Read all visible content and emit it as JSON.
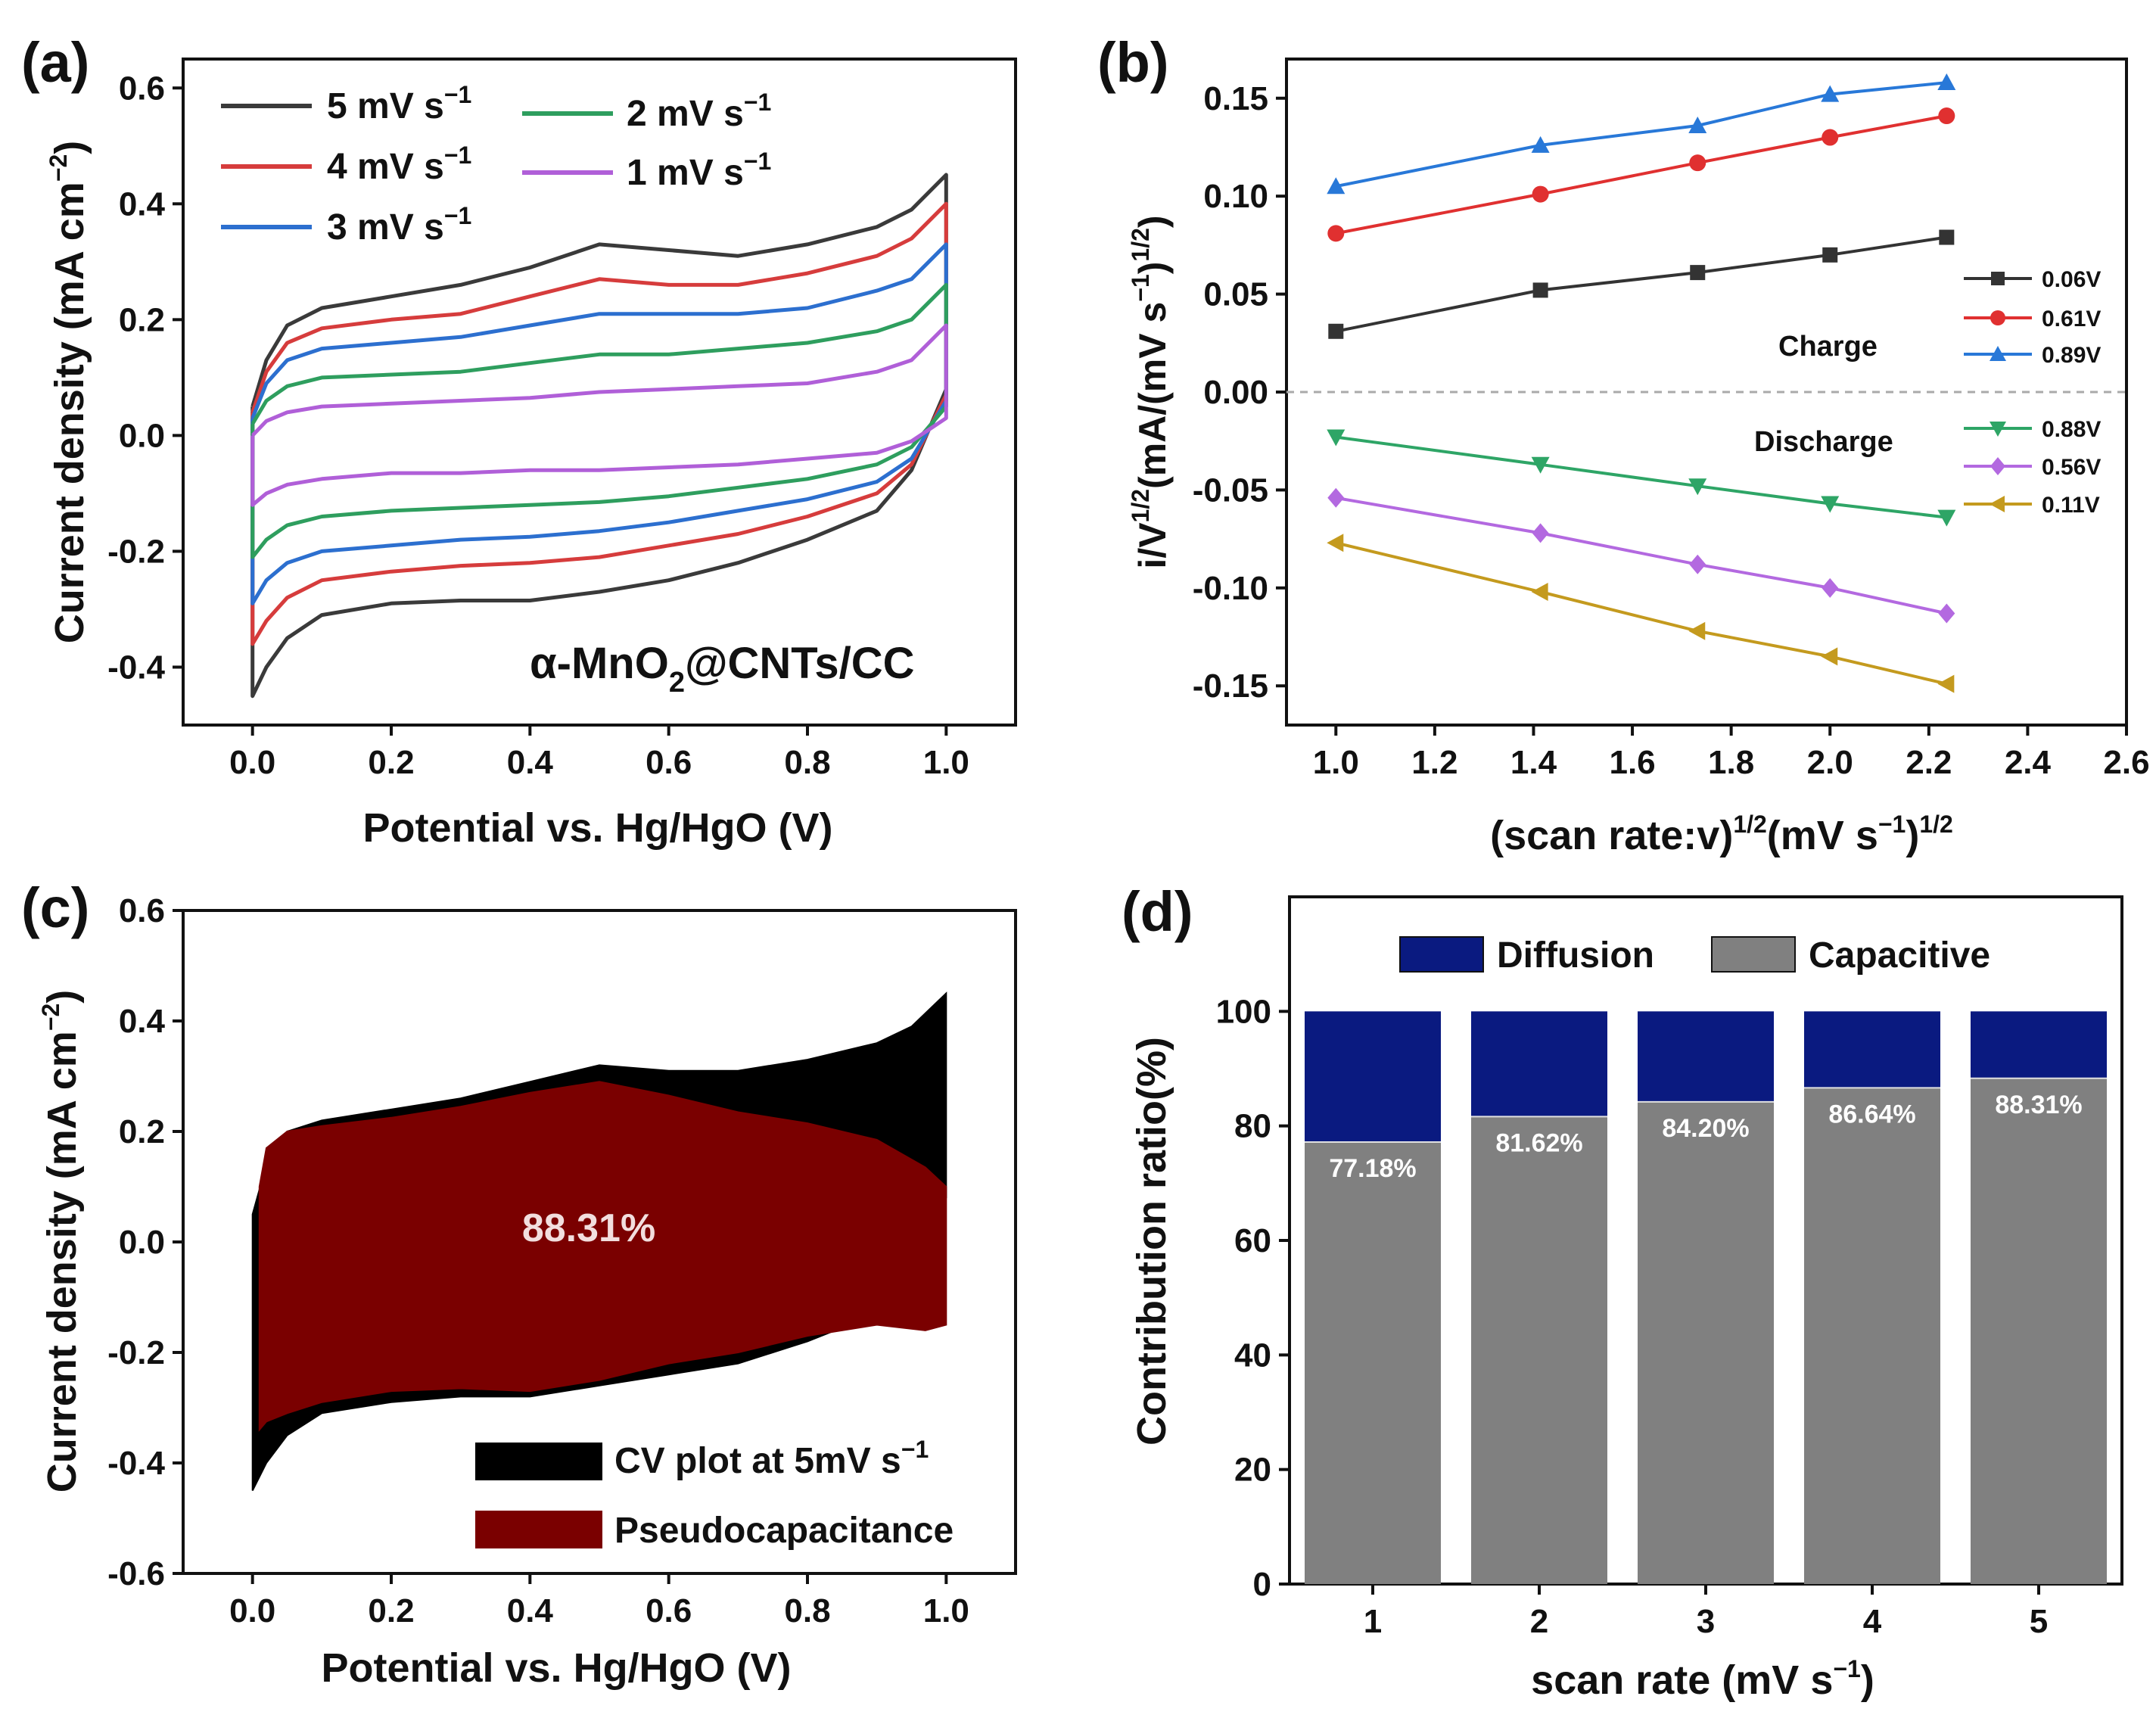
{
  "chart_data": [
    {
      "panel": "(a)",
      "type": "line",
      "xlabel": "Potential vs. Hg/HgO (V)",
      "ylabel": "Current density (mA cm",
      "ylabel_sup": "−2",
      "ylabel_close": ")",
      "xlim": [
        -0.1,
        1.1
      ],
      "ylim": [
        -0.5,
        0.65
      ],
      "xticks": [
        "0.0",
        "0.2",
        "0.4",
        "0.6",
        "0.8",
        "1.0"
      ],
      "yticks": [
        "-0.4",
        "-0.2",
        "0.0",
        "0.2",
        "0.4",
        "0.6"
      ],
      "annotation": {
        "main": "α-MnO",
        "sub": "2",
        "tail": "@CNTs/CC"
      },
      "series": [
        {
          "name": "5 mV s",
          "sup": "−1",
          "color": "#3a3a3a",
          "upper": [
            [
              0,
              0.05
            ],
            [
              0.02,
              0.13
            ],
            [
              0.05,
              0.19
            ],
            [
              0.1,
              0.22
            ],
            [
              0.2,
              0.24
            ],
            [
              0.3,
              0.26
            ],
            [
              0.4,
              0.29
            ],
            [
              0.5,
              0.33
            ],
            [
              0.6,
              0.32
            ],
            [
              0.7,
              0.31
            ],
            [
              0.8,
              0.33
            ],
            [
              0.9,
              0.36
            ],
            [
              0.95,
              0.39
            ],
            [
              1.0,
              0.45
            ]
          ],
          "lower": [
            [
              1.0,
              0.08
            ],
            [
              0.95,
              -0.06
            ],
            [
              0.9,
              -0.13
            ],
            [
              0.8,
              -0.18
            ],
            [
              0.7,
              -0.22
            ],
            [
              0.6,
              -0.25
            ],
            [
              0.5,
              -0.27
            ],
            [
              0.4,
              -0.285
            ],
            [
              0.3,
              -0.285
            ],
            [
              0.2,
              -0.29
            ],
            [
              0.1,
              -0.31
            ],
            [
              0.05,
              -0.35
            ],
            [
              0.02,
              -0.4
            ],
            [
              0,
              -0.45
            ]
          ]
        },
        {
          "name": "4 mV s",
          "sup": "−1",
          "color": "#d63c3c",
          "upper": [
            [
              0,
              0.04
            ],
            [
              0.02,
              0.11
            ],
            [
              0.05,
              0.16
            ],
            [
              0.1,
              0.185
            ],
            [
              0.2,
              0.2
            ],
            [
              0.3,
              0.21
            ],
            [
              0.4,
              0.24
            ],
            [
              0.5,
              0.27
            ],
            [
              0.6,
              0.26
            ],
            [
              0.7,
              0.26
            ],
            [
              0.8,
              0.28
            ],
            [
              0.9,
              0.31
            ],
            [
              0.95,
              0.34
            ],
            [
              1.0,
              0.4
            ]
          ],
          "lower": [
            [
              1.0,
              0.07
            ],
            [
              0.95,
              -0.05
            ],
            [
              0.9,
              -0.1
            ],
            [
              0.8,
              -0.14
            ],
            [
              0.7,
              -0.17
            ],
            [
              0.6,
              -0.19
            ],
            [
              0.5,
              -0.21
            ],
            [
              0.4,
              -0.22
            ],
            [
              0.3,
              -0.225
            ],
            [
              0.2,
              -0.235
            ],
            [
              0.1,
              -0.25
            ],
            [
              0.05,
              -0.28
            ],
            [
              0.02,
              -0.32
            ],
            [
              0,
              -0.36
            ]
          ]
        },
        {
          "name": "3 mV s",
          "sup": "−1",
          "color": "#2c6fcf",
          "upper": [
            [
              0,
              0.03
            ],
            [
              0.02,
              0.09
            ],
            [
              0.05,
              0.13
            ],
            [
              0.1,
              0.15
            ],
            [
              0.2,
              0.16
            ],
            [
              0.3,
              0.17
            ],
            [
              0.4,
              0.19
            ],
            [
              0.5,
              0.21
            ],
            [
              0.6,
              0.21
            ],
            [
              0.7,
              0.21
            ],
            [
              0.8,
              0.22
            ],
            [
              0.9,
              0.25
            ],
            [
              0.95,
              0.27
            ],
            [
              1.0,
              0.33
            ]
          ],
          "lower": [
            [
              1.0,
              0.06
            ],
            [
              0.95,
              -0.04
            ],
            [
              0.9,
              -0.08
            ],
            [
              0.8,
              -0.11
            ],
            [
              0.7,
              -0.13
            ],
            [
              0.6,
              -0.15
            ],
            [
              0.5,
              -0.165
            ],
            [
              0.4,
              -0.175
            ],
            [
              0.3,
              -0.18
            ],
            [
              0.2,
              -0.19
            ],
            [
              0.1,
              -0.2
            ],
            [
              0.05,
              -0.22
            ],
            [
              0.02,
              -0.25
            ],
            [
              0,
              -0.29
            ]
          ]
        },
        {
          "name": "2 mV s",
          "sup": "−1",
          "color": "#2e9e5e",
          "upper": [
            [
              0,
              0.02
            ],
            [
              0.02,
              0.06
            ],
            [
              0.05,
              0.085
            ],
            [
              0.1,
              0.1
            ],
            [
              0.2,
              0.105
            ],
            [
              0.3,
              0.11
            ],
            [
              0.4,
              0.125
            ],
            [
              0.5,
              0.14
            ],
            [
              0.6,
              0.14
            ],
            [
              0.7,
              0.15
            ],
            [
              0.8,
              0.16
            ],
            [
              0.9,
              0.18
            ],
            [
              0.95,
              0.2
            ],
            [
              1.0,
              0.26
            ]
          ],
          "lower": [
            [
              1.0,
              0.05
            ],
            [
              0.95,
              -0.02
            ],
            [
              0.9,
              -0.05
            ],
            [
              0.8,
              -0.075
            ],
            [
              0.7,
              -0.09
            ],
            [
              0.6,
              -0.105
            ],
            [
              0.5,
              -0.115
            ],
            [
              0.4,
              -0.12
            ],
            [
              0.3,
              -0.125
            ],
            [
              0.2,
              -0.13
            ],
            [
              0.1,
              -0.14
            ],
            [
              0.05,
              -0.155
            ],
            [
              0.02,
              -0.18
            ],
            [
              0,
              -0.21
            ]
          ]
        },
        {
          "name": "1 mV s",
          "sup": "−1",
          "color": "#b05fd8",
          "upper": [
            [
              0,
              0.0
            ],
            [
              0.02,
              0.025
            ],
            [
              0.05,
              0.04
            ],
            [
              0.1,
              0.05
            ],
            [
              0.2,
              0.055
            ],
            [
              0.3,
              0.06
            ],
            [
              0.4,
              0.065
            ],
            [
              0.5,
              0.075
            ],
            [
              0.6,
              0.08
            ],
            [
              0.7,
              0.085
            ],
            [
              0.8,
              0.09
            ],
            [
              0.9,
              0.11
            ],
            [
              0.95,
              0.13
            ],
            [
              1.0,
              0.19
            ]
          ],
          "lower": [
            [
              1.0,
              0.03
            ],
            [
              0.95,
              -0.01
            ],
            [
              0.9,
              -0.03
            ],
            [
              0.8,
              -0.04
            ],
            [
              0.7,
              -0.05
            ],
            [
              0.6,
              -0.055
            ],
            [
              0.5,
              -0.06
            ],
            [
              0.4,
              -0.06
            ],
            [
              0.3,
              -0.065
            ],
            [
              0.2,
              -0.065
            ],
            [
              0.1,
              -0.075
            ],
            [
              0.05,
              -0.085
            ],
            [
              0.02,
              -0.1
            ],
            [
              0,
              -0.12
            ]
          ]
        }
      ]
    },
    {
      "panel": "(b)",
      "type": "line",
      "xlabel": "(scan rate:v)",
      "xlabel_sup1": "1/2",
      "xlabel_unit": "(mV s",
      "xlabel_sup2": "−1",
      "xlabel_close": ")",
      "xlabel_sup3": "1/2",
      "ylabel": "i/V",
      "ylabel_sup1": "1/2",
      "ylabel_unit": "(mA/(mV s",
      "ylabel_sup2": "−1",
      "ylabel_close": ")",
      "ylabel_sup3": "1/2",
      "ylabel_end": ")",
      "xlim": [
        0.9,
        2.6
      ],
      "ylim": [
        -0.17,
        0.17
      ],
      "xticks": [
        "1.0",
        "1.2",
        "1.4",
        "1.6",
        "1.8",
        "2.0",
        "2.2",
        "2.4",
        "2.6"
      ],
      "yticks": [
        "-0.15",
        "-0.10",
        "-0.05",
        "0.00",
        "0.05",
        "0.10",
        "0.15"
      ],
      "x": [
        1.0,
        1.414,
        1.732,
        2.0,
        2.236
      ],
      "charge_label": "Charge",
      "discharge_label": "Discharge",
      "series": [
        {
          "name": "0.06V",
          "color": "#333333",
          "marker": "square",
          "values": [
            0.031,
            0.052,
            0.061,
            0.07,
            0.079
          ]
        },
        {
          "name": "0.61V",
          "color": "#e03030",
          "marker": "circle",
          "values": [
            0.081,
            0.101,
            0.117,
            0.13,
            0.141
          ]
        },
        {
          "name": "0.89V",
          "color": "#2878d8",
          "marker": "triangle-up",
          "values": [
            0.105,
            0.126,
            0.136,
            0.152,
            0.158
          ]
        },
        {
          "name": "0.88V",
          "color": "#2ea566",
          "marker": "triangle-down",
          "values": [
            -0.023,
            -0.037,
            -0.048,
            -0.057,
            -0.064
          ]
        },
        {
          "name": "0.56V",
          "color": "#b369e0",
          "marker": "diamond",
          "values": [
            -0.054,
            -0.072,
            -0.088,
            -0.1,
            -0.113
          ]
        },
        {
          "name": "0.11V",
          "color": "#c49a1e",
          "marker": "triangle-left",
          "values": [
            -0.077,
            -0.102,
            -0.122,
            -0.135,
            -0.149
          ]
        }
      ]
    },
    {
      "panel": "(c)",
      "type": "area",
      "xlabel": "Potential vs. Hg/HgO (V)",
      "ylabel": "Current density (mA cm",
      "ylabel_sup": "−2",
      "ylabel_close": ")",
      "xlim": [
        -0.1,
        1.1
      ],
      "ylim": [
        -0.6,
        0.6
      ],
      "xticks": [
        "0.0",
        "0.2",
        "0.4",
        "0.6",
        "0.8",
        "1.0"
      ],
      "yticks": [
        "-0.6",
        "-0.4",
        "-0.2",
        "0.0",
        "0.2",
        "0.4",
        "0.6"
      ],
      "center_label": "88.31%",
      "series": [
        {
          "name": "CV plot at 5mV s",
          "sup": "−1",
          "color": "#000000",
          "upper": [
            [
              0,
              0.05
            ],
            [
              0.02,
              0.14
            ],
            [
              0.05,
              0.2
            ],
            [
              0.1,
              0.22
            ],
            [
              0.2,
              0.24
            ],
            [
              0.3,
              0.26
            ],
            [
              0.4,
              0.29
            ],
            [
              0.5,
              0.32
            ],
            [
              0.6,
              0.31
            ],
            [
              0.7,
              0.31
            ],
            [
              0.8,
              0.33
            ],
            [
              0.9,
              0.36
            ],
            [
              0.95,
              0.39
            ],
            [
              1.0,
              0.45
            ]
          ],
          "lower": [
            [
              1.0,
              0.08
            ],
            [
              0.95,
              -0.06
            ],
            [
              0.9,
              -0.13
            ],
            [
              0.8,
              -0.18
            ],
            [
              0.7,
              -0.22
            ],
            [
              0.6,
              -0.24
            ],
            [
              0.5,
              -0.26
            ],
            [
              0.4,
              -0.28
            ],
            [
              0.3,
              -0.28
            ],
            [
              0.2,
              -0.29
            ],
            [
              0.1,
              -0.31
            ],
            [
              0.05,
              -0.35
            ],
            [
              0.02,
              -0.4
            ],
            [
              0,
              -0.45
            ]
          ]
        },
        {
          "name": "Pseudocapacitance",
          "color": "#7a0000",
          "upper": [
            [
              0.01,
              0.1
            ],
            [
              0.02,
              0.17
            ],
            [
              0.05,
              0.2
            ],
            [
              0.1,
              0.21
            ],
            [
              0.2,
              0.225
            ],
            [
              0.3,
              0.245
            ],
            [
              0.4,
              0.27
            ],
            [
              0.5,
              0.29
            ],
            [
              0.6,
              0.265
            ],
            [
              0.7,
              0.235
            ],
            [
              0.8,
              0.215
            ],
            [
              0.9,
              0.185
            ],
            [
              0.97,
              0.135
            ],
            [
              1.0,
              0.1
            ]
          ],
          "lower": [
            [
              1.0,
              -0.15
            ],
            [
              0.97,
              -0.16
            ],
            [
              0.9,
              -0.15
            ],
            [
              0.8,
              -0.17
            ],
            [
              0.7,
              -0.2
            ],
            [
              0.6,
              -0.22
            ],
            [
              0.5,
              -0.25
            ],
            [
              0.4,
              -0.27
            ],
            [
              0.3,
              -0.265
            ],
            [
              0.2,
              -0.27
            ],
            [
              0.1,
              -0.29
            ],
            [
              0.05,
              -0.31
            ],
            [
              0.02,
              -0.325
            ],
            [
              0.01,
              -0.34
            ]
          ]
        }
      ]
    },
    {
      "panel": "(d)",
      "type": "bar",
      "xlabel": "scan rate (mV s",
      "xlabel_sup": "−1",
      "xlabel_close": ")",
      "ylabel": "Contribution ratio(%)",
      "ylim": [
        0,
        120
      ],
      "yticks": [
        "0",
        "20",
        "40",
        "60",
        "80",
        "100"
      ],
      "categories": [
        "1",
        "2",
        "3",
        "4",
        "5"
      ],
      "series": [
        {
          "name": "Capacitive",
          "color": "#808080",
          "values": [
            77.18,
            81.62,
            84.2,
            86.64,
            88.31
          ]
        },
        {
          "name": "Diffusion",
          "color": "#0a1a80",
          "values": [
            22.82,
            18.38,
            15.8,
            13.36,
            11.69
          ]
        }
      ],
      "data_labels": [
        "77.18%",
        "81.62%",
        "84.20%",
        "86.64%",
        "88.31%"
      ]
    }
  ],
  "panel_labels": [
    "(a)",
    "(b)",
    "(c)",
    "(d)"
  ]
}
